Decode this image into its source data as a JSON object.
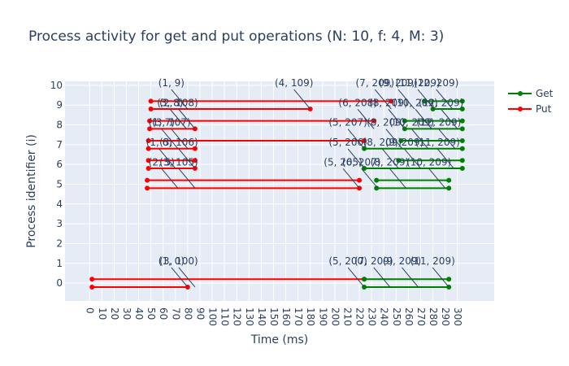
{
  "chart_data": {
    "type": "line",
    "title": "Process activity for get and put operations (N: 10, f: 4, M: 3)",
    "xlabel": "Time (ms)",
    "ylabel": "Process identifier (i)",
    "xlim": [
      -20,
      330
    ],
    "ylim": [
      -0.9,
      10.2
    ],
    "xticks": [
      0,
      10,
      20,
      30,
      40,
      50,
      60,
      70,
      80,
      90,
      100,
      110,
      120,
      130,
      140,
      150,
      160,
      170,
      180,
      190,
      200,
      210,
      220,
      230,
      240,
      250,
      260,
      270,
      280,
      290,
      300
    ],
    "yticks": [
      0,
      1,
      2,
      3,
      4,
      5,
      6,
      7,
      8,
      9,
      10
    ],
    "grid": true,
    "legend_position": "top-right",
    "colors": {
      "get": "#008000",
      "put": "#ff0000",
      "plot_bg": "#e5ecf6",
      "text": "#2a3f5f"
    },
    "series": [
      {
        "name": "Get",
        "segments": [
          {
            "y": 9.2,
            "x": [
              273,
              304
            ]
          },
          {
            "y": 8.8,
            "x": [
              280,
              304
            ]
          },
          {
            "y": 8.2,
            "x": [
              257,
              304
            ]
          },
          {
            "y": 7.8,
            "x": [
              257,
              304
            ]
          },
          {
            "y": 7.2,
            "x": [
              254,
              304
            ]
          },
          {
            "y": 6.8,
            "x": [
              224,
              304
            ]
          },
          {
            "y": 6.2,
            "x": [
              252,
              304
            ]
          },
          {
            "y": 5.8,
            "x": [
              224,
              304
            ]
          },
          {
            "y": 5.2,
            "x": [
              234,
              293
            ]
          },
          {
            "y": 4.8,
            "x": [
              234,
              293
            ]
          },
          {
            "y": 0.2,
            "x": [
              224,
              293
            ]
          },
          {
            "y": -0.2,
            "x": [
              224,
              293
            ]
          }
        ]
      },
      {
        "name": "Put",
        "segments": [
          {
            "y": 9.2,
            "x": [
              50,
              246
            ]
          },
          {
            "y": 8.8,
            "x": [
              50,
              180
            ]
          },
          {
            "y": 8.2,
            "x": [
              49,
              232
            ]
          },
          {
            "y": 7.8,
            "x": [
              49,
              86
            ]
          },
          {
            "y": 7.2,
            "x": [
              48,
              224
            ]
          },
          {
            "y": 6.8,
            "x": [
              48,
              86
            ]
          },
          {
            "y": 6.2,
            "x": [
              48,
              86
            ]
          },
          {
            "y": 5.8,
            "x": [
              48,
              86
            ]
          },
          {
            "y": 5.2,
            "x": [
              47,
              220
            ]
          },
          {
            "y": 4.8,
            "x": [
              47,
              220
            ]
          },
          {
            "y": 0.2,
            "x": [
              2,
              224
            ]
          },
          {
            "y": -0.2,
            "x": [
              2,
              80
            ]
          }
        ]
      }
    ],
    "annotations": [
      {
        "text": "(1, 9)",
        "x": 80,
        "y": 8.8
      },
      {
        "text": "(4, 109)",
        "x": 180,
        "y": 8.8
      },
      {
        "text": "(7, 209)",
        "x": 246,
        "y": 8.8
      },
      {
        "text": "(9, 209)",
        "x": 265,
        "y": 8.8
      },
      {
        "text": "(11, 209)",
        "x": 281,
        "y": 8.8
      },
      {
        "text": "(12, 209)",
        "x": 296,
        "y": 8.8
      },
      {
        "text": "(3, 8)",
        "x": 79,
        "y": 7.8
      },
      {
        "text": "(2, 108)",
        "x": 86,
        "y": 7.8
      },
      {
        "text": "(6, 208)",
        "x": 232,
        "y": 7.8
      },
      {
        "text": "(8, 209)",
        "x": 257,
        "y": 7.8
      },
      {
        "text": "(10, 209)",
        "x": 279,
        "y": 7.8
      },
      {
        "text": "(12, 209)",
        "x": 300,
        "y": 7.8
      },
      {
        "text": "(1, 7)",
        "x": 72,
        "y": 6.8
      },
      {
        "text": "(3, 107)",
        "x": 80,
        "y": 6.8
      },
      {
        "text": "(5, 207)",
        "x": 224,
        "y": 6.8
      },
      {
        "text": "(8, 209)",
        "x": 255,
        "y": 6.8
      },
      {
        "text": "(10, 209)",
        "x": 276,
        "y": 6.8
      },
      {
        "text": "(12, 209)",
        "x": 298,
        "y": 6.8
      },
      {
        "text": "(1, 6)",
        "x": 70,
        "y": 5.8
      },
      {
        "text": "(3, 106)",
        "x": 86,
        "y": 5.8
      },
      {
        "text": "(5, 206)",
        "x": 224,
        "y": 5.8
      },
      {
        "text": "(8, 209)",
        "x": 252,
        "y": 5.8
      },
      {
        "text": "(9, 209)",
        "x": 270,
        "y": 5.8
      },
      {
        "text": "(11, 209)",
        "x": 297,
        "y": 5.8
      },
      {
        "text": "(2, 5)",
        "x": 72,
        "y": 4.8
      },
      {
        "text": "(3, 105)",
        "x": 86,
        "y": 4.8
      },
      {
        "text": "(5, 205)",
        "x": 220,
        "y": 4.8
      },
      {
        "text": "(6, 207)",
        "x": 235,
        "y": 4.8
      },
      {
        "text": "(8, 209)",
        "x": 258,
        "y": 4.8
      },
      {
        "text": "(10, 209)",
        "x": 290,
        "y": 4.8
      },
      {
        "text": "(1, 0)",
        "x": 80,
        "y": -0.2
      },
      {
        "text": "(3, 100)",
        "x": 86,
        "y": -0.2
      },
      {
        "text": "(5, 200)",
        "x": 224,
        "y": -0.2
      },
      {
        "text": "(7, 209)",
        "x": 245,
        "y": -0.2
      },
      {
        "text": "(9, 209)",
        "x": 268,
        "y": -0.2
      },
      {
        "text": "(11, 209)",
        "x": 293,
        "y": -0.2
      }
    ]
  }
}
